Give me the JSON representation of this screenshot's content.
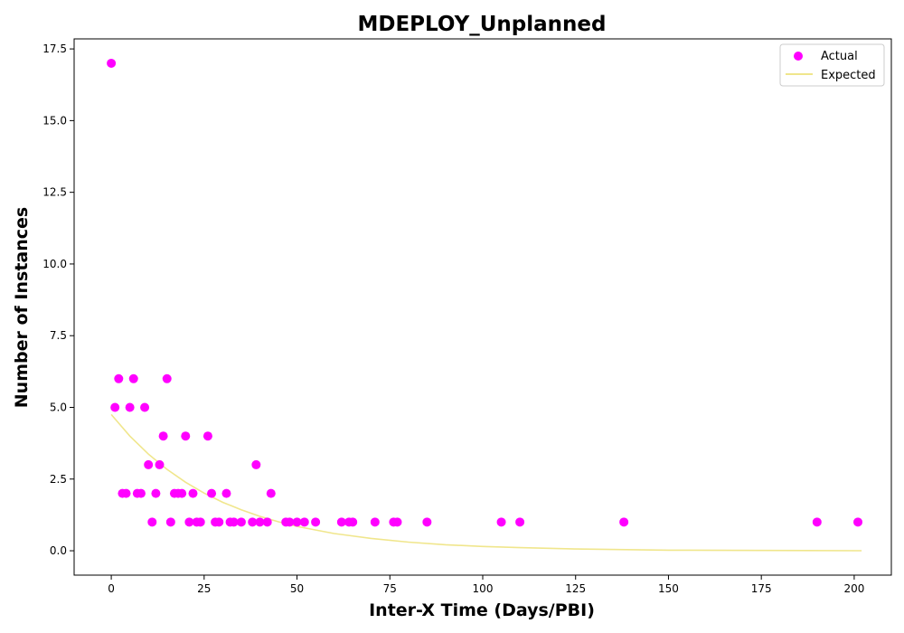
{
  "chart_data": {
    "type": "scatter",
    "title": "MDEPLOY_Unplanned",
    "xlabel": "Inter-X Time (Days/PBI)",
    "ylabel": "Number of Instances",
    "xlim": [
      -10,
      210
    ],
    "ylim": [
      -0.85,
      17.85
    ],
    "x_ticks": [
      0,
      25,
      50,
      75,
      100,
      125,
      150,
      175,
      200
    ],
    "x_tick_labels": [
      "0",
      "25",
      "50",
      "75",
      "100",
      "125",
      "150",
      "175",
      "200"
    ],
    "y_ticks": [
      0,
      2.5,
      5,
      7.5,
      10,
      12.5,
      15,
      17.5
    ],
    "y_tick_labels": [
      "0.0",
      "2.5",
      "5.0",
      "7.5",
      "10.0",
      "12.5",
      "15.0",
      "17.5"
    ],
    "grid": false,
    "legend": "top-right",
    "series": [
      {
        "name": "Actual",
        "kind": "scatter",
        "color": "#ff00ff",
        "x": [
          0,
          1,
          2,
          3,
          4,
          5,
          6,
          7,
          8,
          9,
          10,
          11,
          12,
          13,
          14,
          15,
          16,
          17,
          18,
          19,
          20,
          21,
          22,
          23,
          24,
          26,
          27,
          28,
          29,
          31,
          32,
          33,
          35,
          38,
          39,
          40,
          42,
          43,
          47,
          48,
          50,
          52,
          55,
          62,
          64,
          65,
          71,
          76,
          77,
          85,
          105,
          110,
          138,
          190,
          201
        ],
        "y": [
          17,
          5,
          6,
          2,
          2,
          5,
          6,
          2,
          2,
          5,
          3,
          1,
          2,
          3,
          4,
          6,
          1,
          2,
          2,
          2,
          4,
          1,
          2,
          1,
          1,
          4,
          2,
          1,
          1,
          2,
          1,
          1,
          1,
          1,
          3,
          1,
          1,
          2,
          1,
          1,
          1,
          1,
          1,
          1,
          1,
          1,
          1,
          1,
          1,
          1,
          1,
          1,
          1,
          1,
          1
        ]
      },
      {
        "name": "Expected",
        "kind": "line",
        "color": "#f0e68c",
        "x": [
          0,
          5,
          10,
          15,
          20,
          25,
          30,
          35,
          40,
          45,
          50,
          60,
          70,
          80,
          90,
          100,
          110,
          125,
          150,
          175,
          202
        ],
        "y": [
          4.75,
          4.0,
          3.37,
          2.84,
          2.39,
          2.01,
          1.69,
          1.43,
          1.2,
          1.01,
          0.85,
          0.6,
          0.43,
          0.3,
          0.21,
          0.15,
          0.11,
          0.06,
          0.02,
          0.01,
          0.0
        ]
      }
    ]
  }
}
